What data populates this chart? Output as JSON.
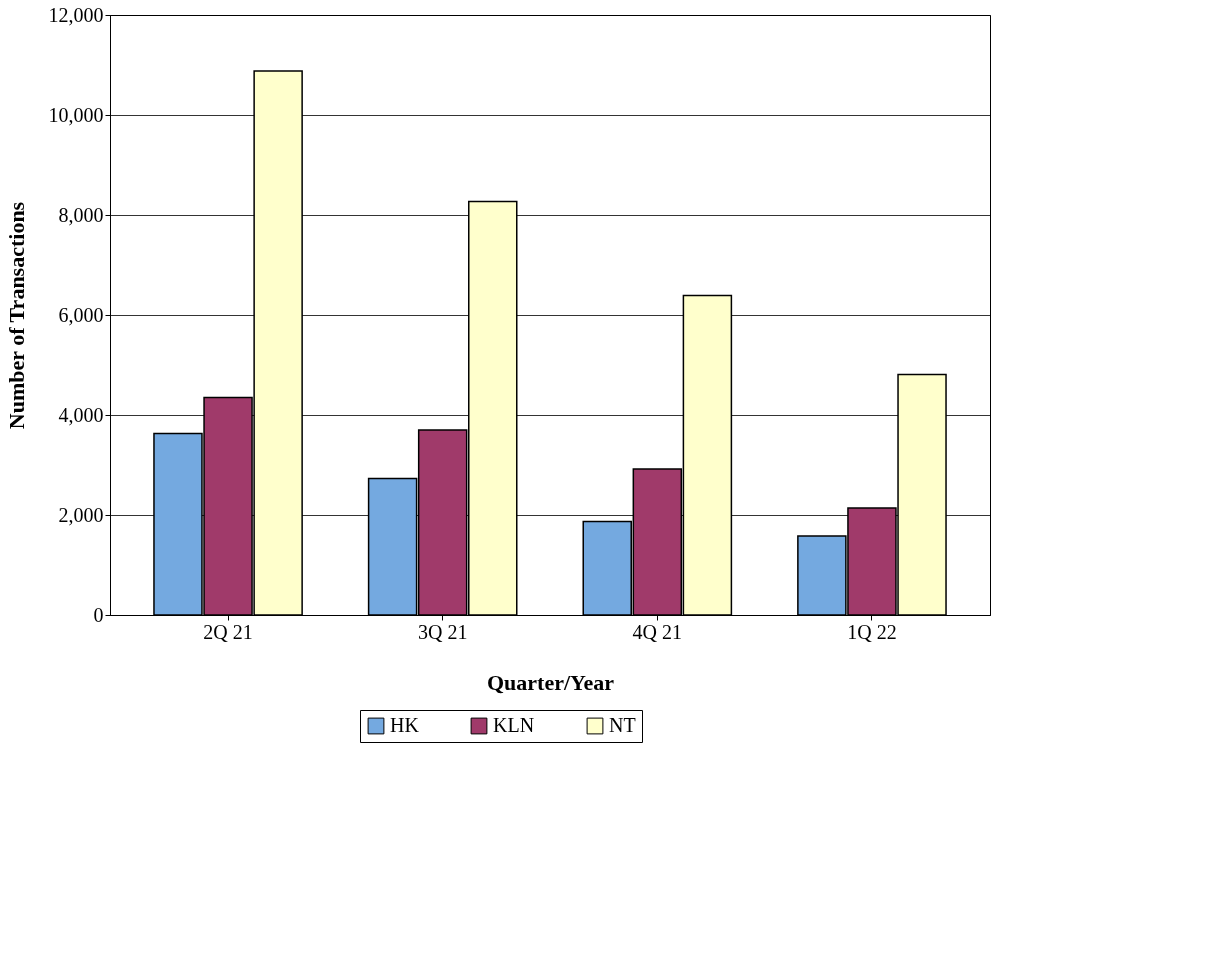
{
  "chart_data": {
    "type": "bar",
    "xlabel": "Quarter/Year",
    "ylabel": "Number of Transactions",
    "categories": [
      "2Q 21",
      "3Q 21",
      "4Q 21",
      "1Q 22"
    ],
    "series": [
      {
        "name": "HK",
        "color": "#74a9e0",
        "values": [
          3630,
          2730,
          1870,
          1580
        ]
      },
      {
        "name": "KLN",
        "color": "#a03a6a",
        "values": [
          4350,
          3700,
          2920,
          2140
        ]
      },
      {
        "name": "NT",
        "color": "#ffffcc",
        "values": [
          10880,
          8270,
          6390,
          4810
        ]
      }
    ],
    "ylim": [
      0,
      12000
    ],
    "yticks": [
      0,
      {
        "value": 2000,
        "label": "2,000"
      },
      {
        "value": 4000,
        "label": "4,000"
      },
      {
        "value": 6000,
        "label": "6,000"
      },
      {
        "value": 8000,
        "label": "8,000"
      },
      {
        "value": 10000,
        "label": "10,000"
      },
      {
        "value": 12000,
        "label": "12,000"
      }
    ],
    "grid": "y",
    "legend": "bottom"
  }
}
